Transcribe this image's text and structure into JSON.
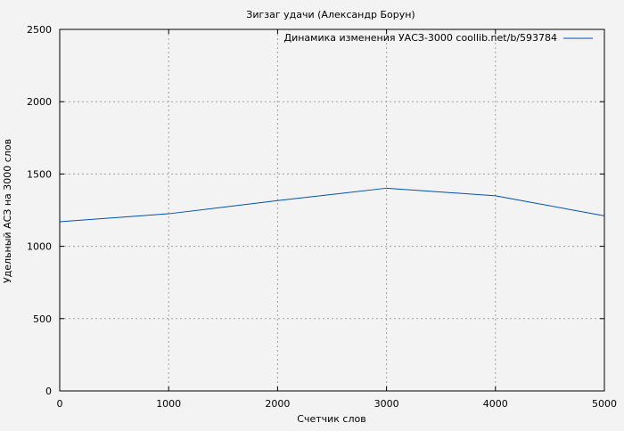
{
  "chart_data": {
    "type": "line",
    "title": "Зигзаг удачи (Александр Борун)",
    "xlabel": "Счетчик слов",
    "ylabel": "Удельный АСЗ на 3000 слов",
    "xlim": [
      0,
      5000
    ],
    "ylim": [
      0,
      2500
    ],
    "xticks": [
      0,
      1000,
      2000,
      3000,
      4000,
      5000
    ],
    "yticks": [
      0,
      500,
      1000,
      1500,
      2000,
      2500
    ],
    "grid": true,
    "legend_placement": "top-right",
    "series": [
      {
        "name": "Динамика изменения УАСЗ-3000 coollib.net/b/593784",
        "color": "#0050b4",
        "x": [
          0,
          1000,
          2000,
          3000,
          4000,
          5000
        ],
        "y": [
          1170,
          1225,
          1316,
          1402,
          1349,
          1211
        ]
      }
    ]
  }
}
